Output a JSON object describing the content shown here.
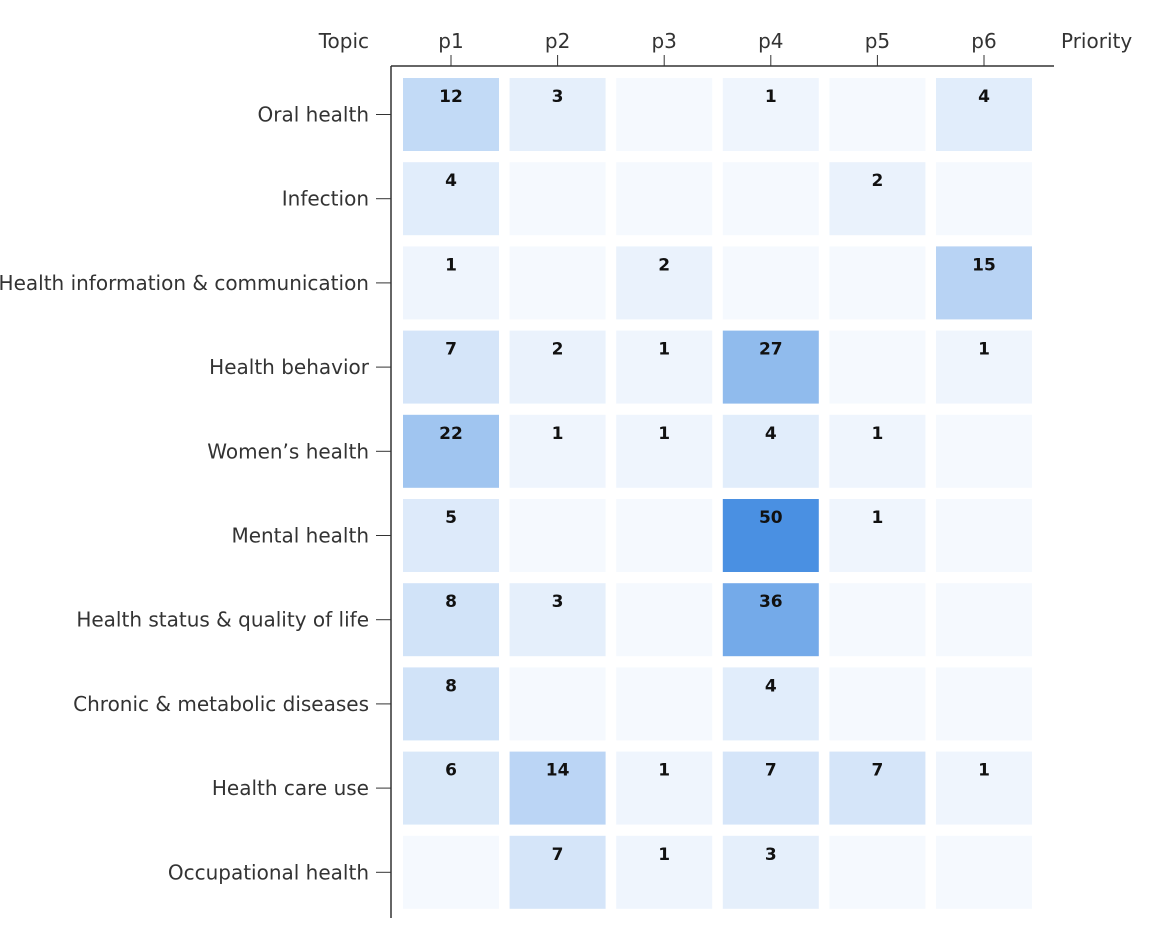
{
  "chart_data": {
    "type": "heatmap",
    "row_axis_title": "Topic",
    "col_axis_title": "Priority",
    "columns": [
      "p1",
      "p2",
      "p3",
      "p4",
      "p5",
      "p6"
    ],
    "rows": [
      "Oral health",
      "Infection",
      "Health information & communication",
      "Health behavior",
      "Women’s health",
      "Mental health",
      "Health status & quality of life",
      "Chronic & metabolic diseases",
      "Health care use",
      "Occupational health"
    ],
    "values": [
      [
        12,
        3,
        null,
        1,
        null,
        4
      ],
      [
        4,
        null,
        null,
        null,
        2,
        null
      ],
      [
        1,
        null,
        2,
        null,
        null,
        15
      ],
      [
        7,
        2,
        1,
        27,
        null,
        1
      ],
      [
        22,
        1,
        1,
        4,
        1,
        null
      ],
      [
        5,
        null,
        null,
        50,
        1,
        null
      ],
      [
        8,
        3,
        null,
        36,
        null,
        null
      ],
      [
        8,
        null,
        null,
        4,
        null,
        null
      ],
      [
        6,
        14,
        1,
        7,
        7,
        1
      ],
      [
        null,
        7,
        1,
        3,
        null,
        null
      ]
    ],
    "color_scale": {
      "low": "#f5f9fe",
      "high": "#4a90e2",
      "min": 0,
      "max": 50
    },
    "axis_color": "#333333"
  }
}
